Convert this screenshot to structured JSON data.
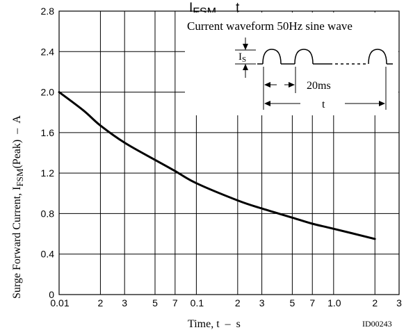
{
  "chart_data": {
    "type": "line",
    "title": "IFSM – t",
    "title_main": "I",
    "title_sub": "FSM",
    "title_rest": "t",
    "xlabel": "Time, t  –  s",
    "ylabel_prefix": "Surge Forward Current, I",
    "ylabel_sub": "FSM",
    "ylabel_suffix": "(Peak)  –  A",
    "x_scale": "log",
    "xlim": [
      0.01,
      3
    ],
    "ylim": [
      0,
      2.8
    ],
    "grid": true,
    "x_ticks": [
      {
        "value": 0.01,
        "label": "0.01"
      },
      {
        "value": 0.02,
        "label": "2"
      },
      {
        "value": 0.03,
        "label": "3"
      },
      {
        "value": 0.05,
        "label": "5"
      },
      {
        "value": 0.07,
        "label": "7"
      },
      {
        "value": 0.1,
        "label": "0.1"
      },
      {
        "value": 0.2,
        "label": "2"
      },
      {
        "value": 0.3,
        "label": "3"
      },
      {
        "value": 0.5,
        "label": "5"
      },
      {
        "value": 0.7,
        "label": "7"
      },
      {
        "value": 1.0,
        "label": "1.0"
      },
      {
        "value": 2,
        "label": "2"
      },
      {
        "value": 3,
        "label": "3"
      }
    ],
    "y_ticks": [
      {
        "value": 0,
        "label": "0"
      },
      {
        "value": 0.4,
        "label": "0.4"
      },
      {
        "value": 0.8,
        "label": "0.8"
      },
      {
        "value": 1.2,
        "label": "1.2"
      },
      {
        "value": 1.6,
        "label": "1.6"
      },
      {
        "value": 2.0,
        "label": "2.0"
      },
      {
        "value": 2.4,
        "label": "2.4"
      },
      {
        "value": 2.8,
        "label": "2.8"
      }
    ],
    "series": [
      {
        "x": [
          0.01,
          0.015,
          0.02,
          0.03,
          0.05,
          0.07,
          0.1,
          0.2,
          0.3,
          0.5,
          0.7,
          1.0,
          2.0
        ],
        "y": [
          2.0,
          1.82,
          1.67,
          1.5,
          1.33,
          1.22,
          1.1,
          0.93,
          0.85,
          0.76,
          0.7,
          0.65,
          0.55
        ]
      }
    ],
    "annotations": {
      "waveform_title": "Current waveform 50Hz sine wave",
      "is_main": "I",
      "is_sub": "S",
      "period_label": "20ms",
      "duration_label": "t"
    },
    "figure_id": "ID00243"
  }
}
